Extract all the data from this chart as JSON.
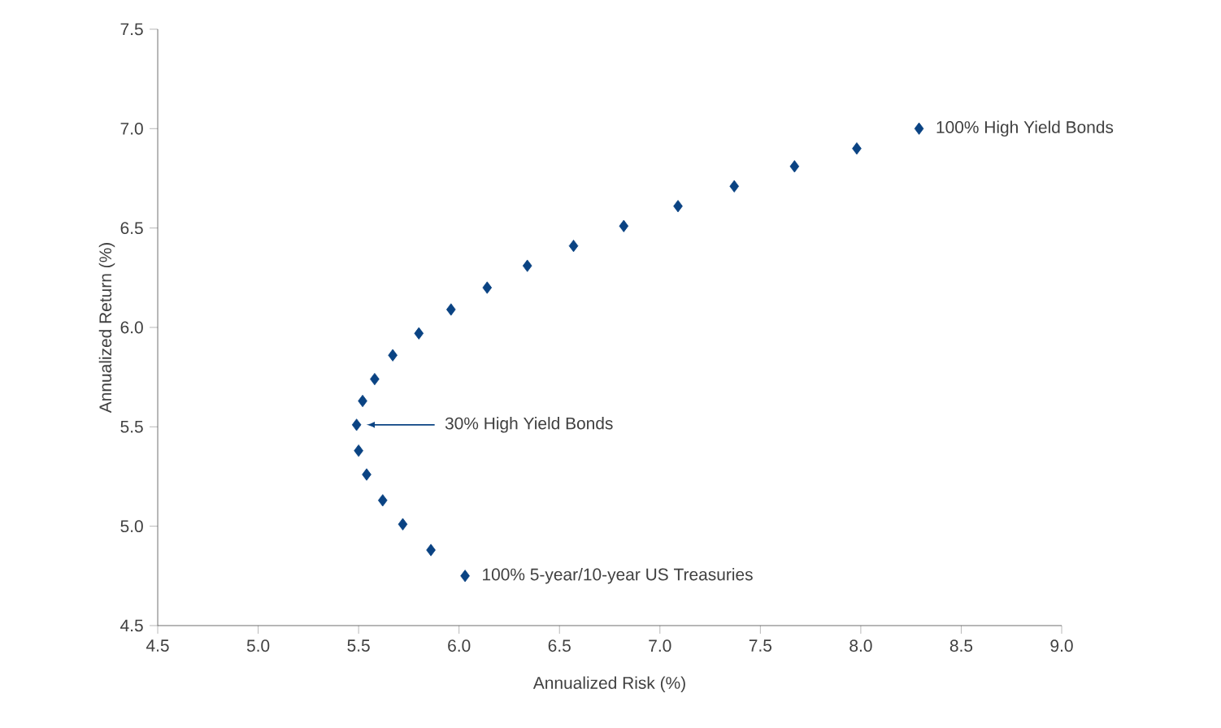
{
  "chart_data": {
    "type": "scatter",
    "xlabel": "Annualized Risk (%)",
    "ylabel": "Annualized Return (%)",
    "x": [
      6.03,
      5.86,
      5.72,
      5.62,
      5.54,
      5.5,
      5.49,
      5.52,
      5.58,
      5.67,
      5.8,
      5.96,
      6.14,
      6.34,
      6.57,
      6.82,
      7.09,
      7.37,
      7.67,
      7.98,
      8.29
    ],
    "values": [
      4.75,
      4.88,
      5.01,
      5.13,
      5.26,
      5.38,
      5.51,
      5.63,
      5.74,
      5.86,
      5.97,
      6.09,
      6.2,
      6.31,
      6.41,
      6.51,
      6.61,
      6.71,
      6.81,
      6.9,
      7.0
    ],
    "color": "#0a4383",
    "marker": "diamond",
    "grid": false,
    "xlim": [
      4.5,
      9.0
    ],
    "xticks": [
      {
        "value": 4.5,
        "label": "4.5"
      },
      {
        "value": 5.0,
        "label": "5.0"
      },
      {
        "value": 5.5,
        "label": "5.5"
      },
      {
        "value": 6.0,
        "label": "6.0"
      },
      {
        "value": 6.5,
        "label": "6.5"
      },
      {
        "value": 7.0,
        "label": "7.0"
      },
      {
        "value": 7.5,
        "label": "7.5"
      },
      {
        "value": 8.0,
        "label": "8.0"
      },
      {
        "value": 8.5,
        "label": "8.5"
      },
      {
        "value": 9.0,
        "label": "9.0"
      }
    ],
    "ylim": [
      4.5,
      7.5
    ],
    "yticks": [
      {
        "value": 4.5,
        "label": "4.5"
      },
      {
        "value": 5.0,
        "label": "5.0"
      },
      {
        "value": 5.5,
        "label": "5.5"
      },
      {
        "value": 6.0,
        "label": "6.0"
      },
      {
        "value": 6.5,
        "label": "6.5"
      },
      {
        "value": 7.0,
        "label": "7.0"
      },
      {
        "value": 7.5,
        "label": "7.5"
      }
    ],
    "annotations": [
      {
        "text": "100% High Yield Bonds",
        "x": 8.29,
        "y": 7.0
      },
      "30% High Yield Bonds",
      {
        "text": "100% 5-year/10-year US Treasuries",
        "x": 6.03,
        "y": 4.75
      }
    ]
  }
}
